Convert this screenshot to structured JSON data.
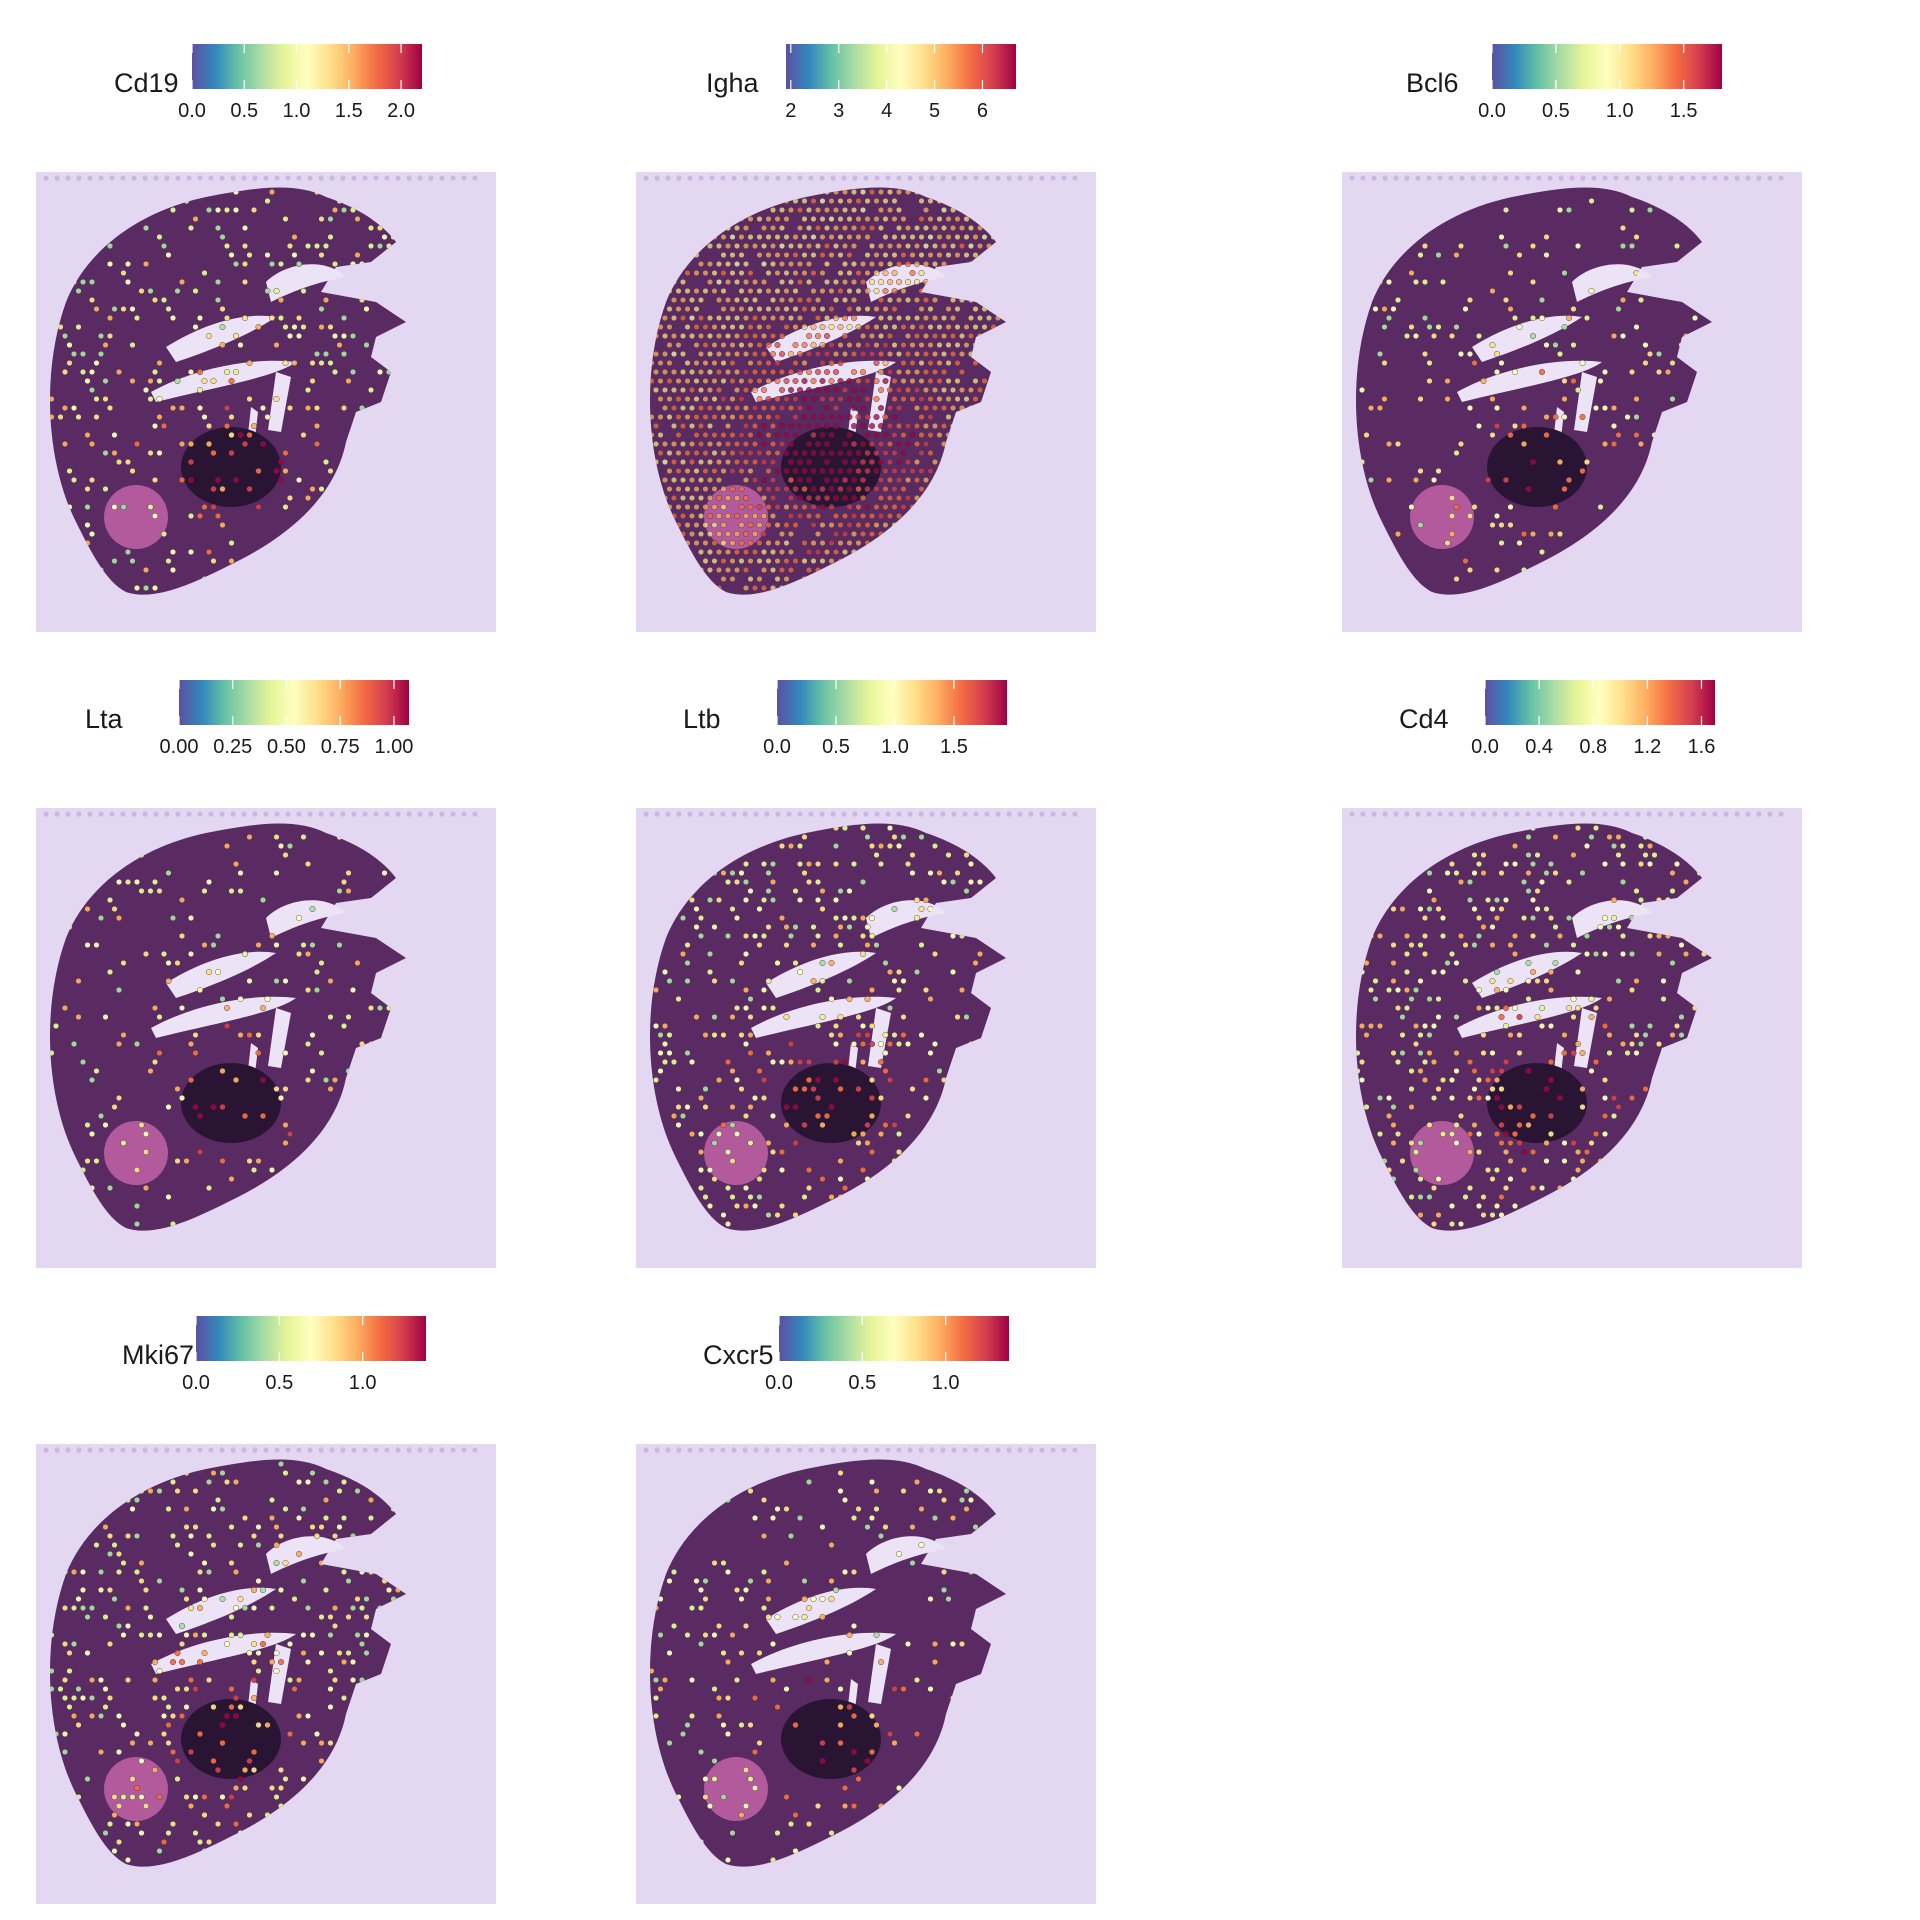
{
  "chart_data": [
    {
      "type": "scatter",
      "title": "Cd19",
      "colorbar": {
        "ticks": [
          "0.0",
          "0.5",
          "1.0",
          "1.5",
          "2.0"
        ],
        "ticks_value": [
          0.0,
          0.5,
          1.0,
          1.5,
          2.0
        ],
        "range": [
          0.0,
          2.2
        ]
      },
      "hotspot": "center"
    },
    {
      "type": "scatter",
      "title": "Igha",
      "colorbar": {
        "ticks": [
          "2",
          "3",
          "4",
          "5",
          "6"
        ],
        "ticks_value": [
          2,
          3,
          4,
          5,
          6
        ],
        "range": [
          1.9,
          6.7
        ]
      },
      "hotspot": "dense"
    },
    {
      "type": "scatter",
      "title": "Bcl6",
      "colorbar": {
        "ticks": [
          "0.0",
          "0.5",
          "1.0",
          "1.5"
        ],
        "ticks_value": [
          0.0,
          0.5,
          1.0,
          1.5
        ],
        "range": [
          0.0,
          1.8
        ]
      },
      "hotspot": "sparse"
    },
    {
      "type": "scatter",
      "title": "Lta",
      "colorbar": {
        "ticks": [
          "0.00",
          "0.25",
          "0.50",
          "0.75",
          "1.00"
        ],
        "ticks_value": [
          0.0,
          0.25,
          0.5,
          0.75,
          1.0
        ],
        "range": [
          0.0,
          1.07
        ]
      },
      "hotspot": "sparse"
    },
    {
      "type": "scatter",
      "title": "Ltb",
      "colorbar": {
        "ticks": [
          "0.0",
          "0.5",
          "1.0",
          "1.5"
        ],
        "ticks_value": [
          0.0,
          0.5,
          1.0,
          1.5
        ],
        "range": [
          0.0,
          1.95
        ]
      },
      "hotspot": "medium"
    },
    {
      "type": "scatter",
      "title": "Cd4",
      "colorbar": {
        "ticks": [
          "0.0",
          "0.4",
          "0.8",
          "1.2",
          "1.6"
        ],
        "ticks_value": [
          0.0,
          0.4,
          0.8,
          1.2,
          1.6
        ],
        "range": [
          0.0,
          1.7
        ]
      },
      "hotspot": "medium"
    },
    {
      "type": "scatter",
      "title": "Mki67",
      "colorbar": {
        "ticks": [
          "0.0",
          "0.5",
          "1.0"
        ],
        "ticks_value": [
          0.0,
          0.5,
          1.0
        ],
        "range": [
          0.0,
          1.38
        ]
      },
      "hotspot": "medium"
    },
    {
      "type": "scatter",
      "title": "Cxcr5",
      "colorbar": {
        "ticks": [
          "0.0",
          "0.5",
          "1.0"
        ],
        "ticks_value": [
          0.0,
          0.5,
          1.0
        ],
        "range": [
          0.0,
          1.38
        ]
      },
      "hotspot": "sparse"
    }
  ],
  "colors": {
    "spectral": [
      "#5e4fa2",
      "#3288bd",
      "#66c2a5",
      "#abdda4",
      "#e6f598",
      "#ffffbf",
      "#fee08b",
      "#fdae61",
      "#f46d43",
      "#d53e4f",
      "#9e0142"
    ],
    "background": "#e3d7f2",
    "tissue": "#5a2a63"
  }
}
